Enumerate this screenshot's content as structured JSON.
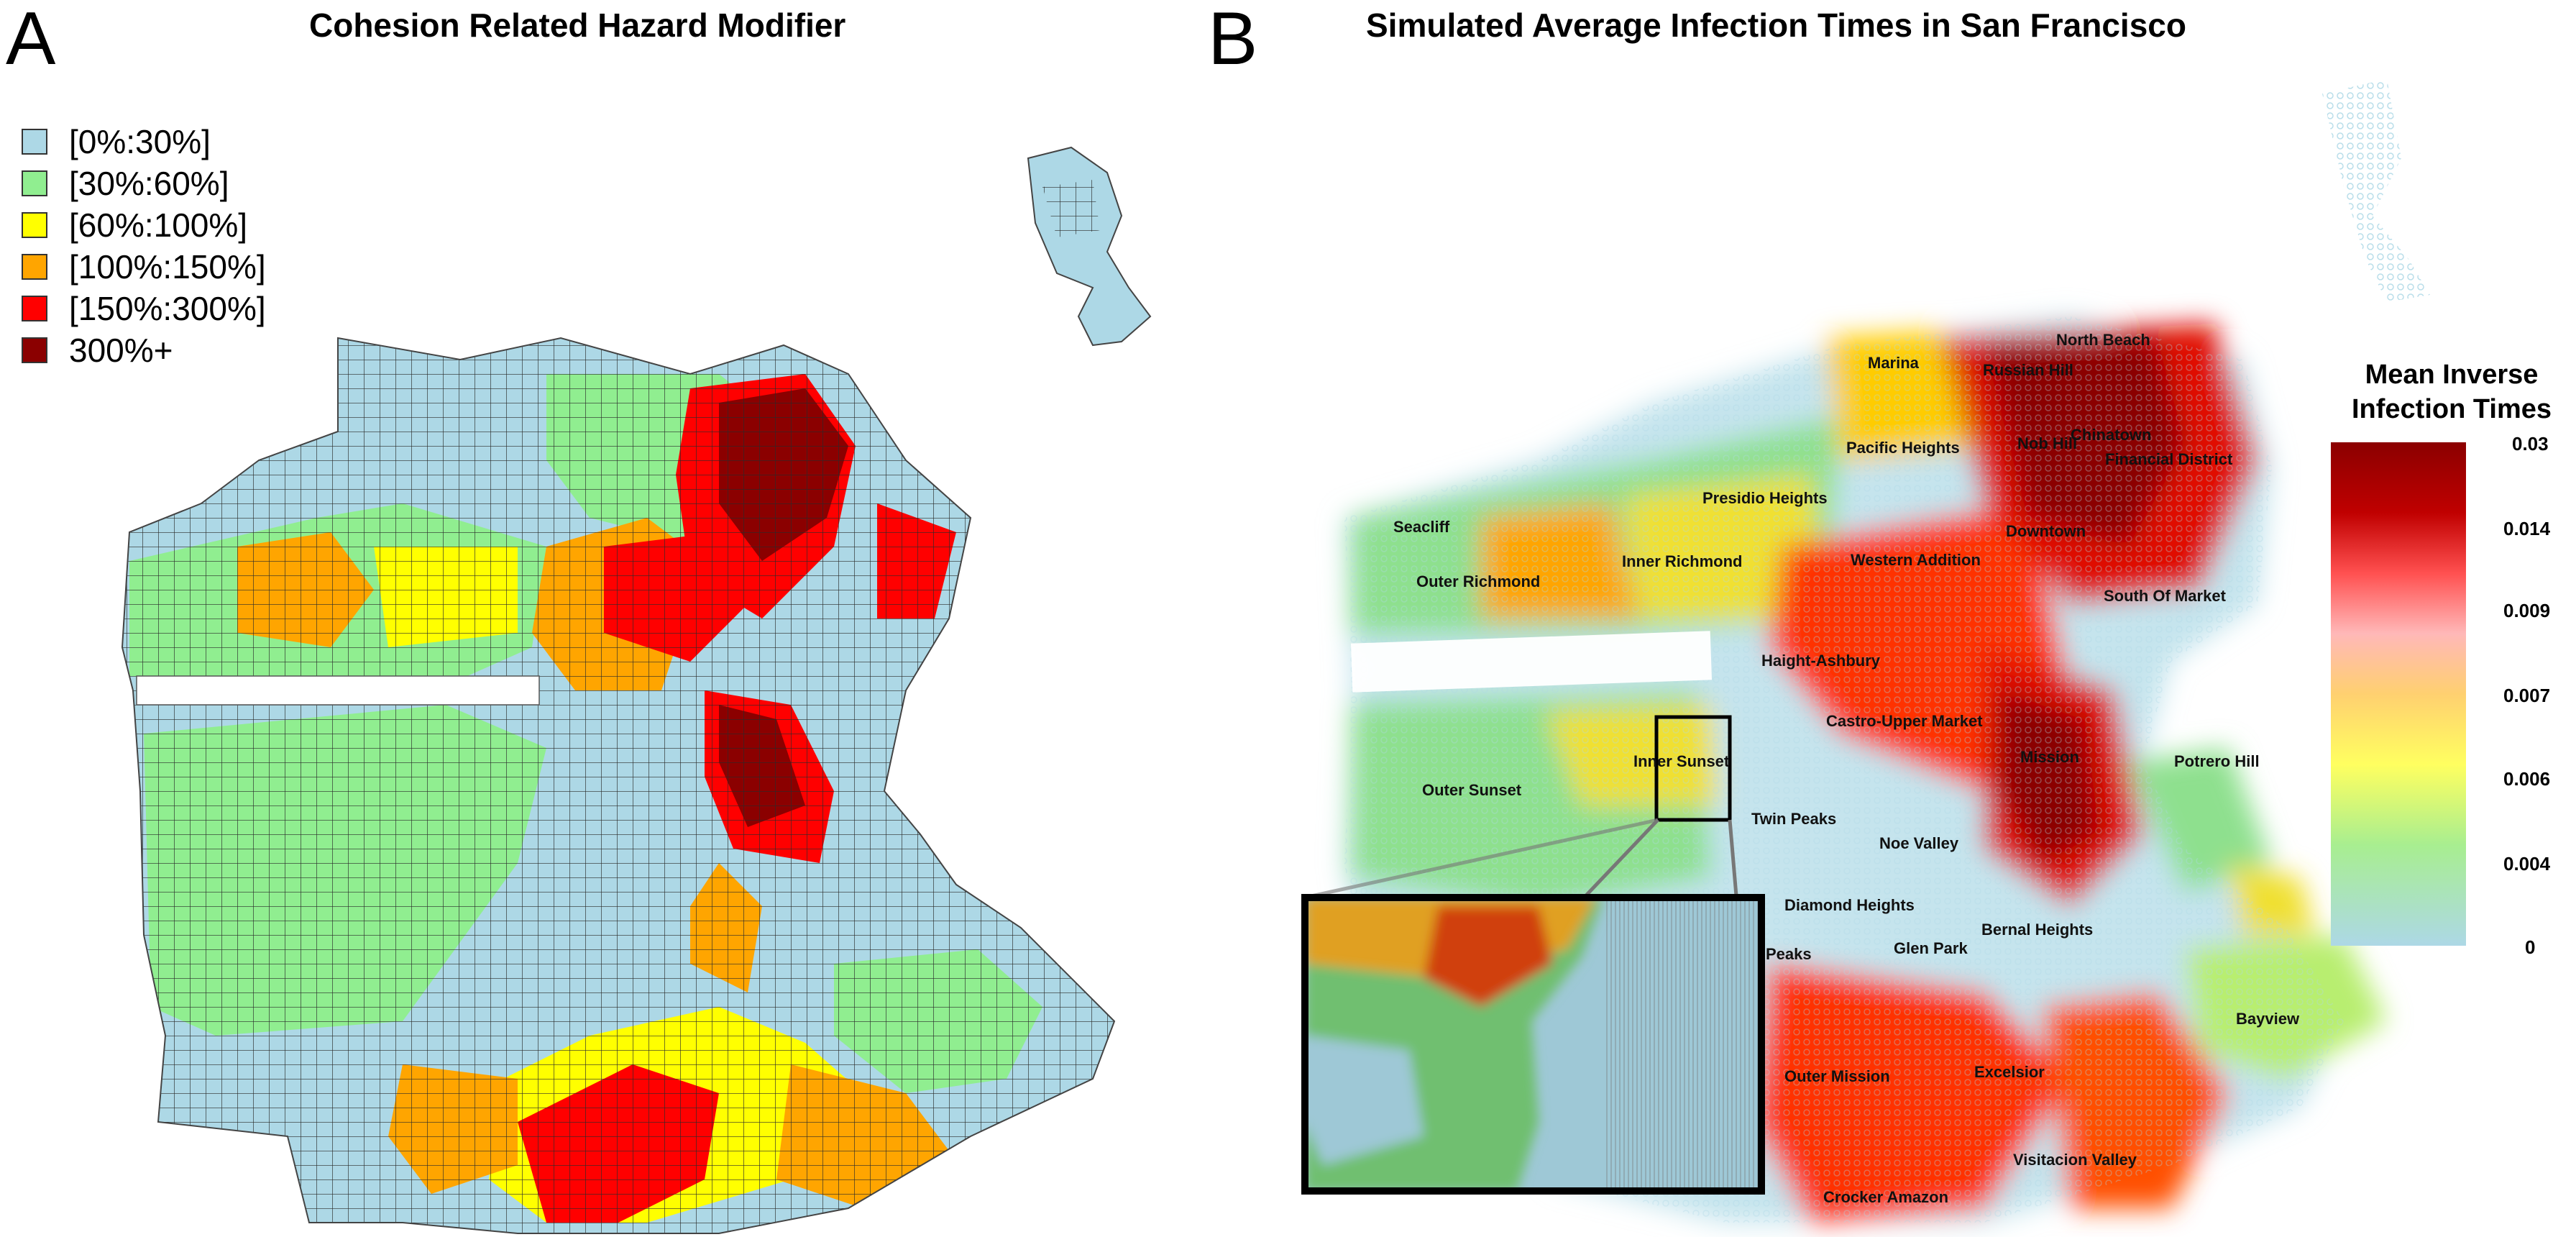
{
  "panel_a": {
    "letter": "A",
    "title": "Cohesion Related Hazard Modifier",
    "legend": [
      {
        "label": "[0%:30%]",
        "color": "#add8e6"
      },
      {
        "label": "[30%:60%]",
        "color": "#90ee90"
      },
      {
        "label": "[60%:100%]",
        "color": "#ffff00"
      },
      {
        "label": "[100%:150%]",
        "color": "#ffa500"
      },
      {
        "label": "[150%:300%]",
        "color": "#ff0000"
      },
      {
        "label": "300%+",
        "color": "#8b0000"
      }
    ]
  },
  "panel_b": {
    "letter": "B",
    "title": "Simulated Average Infection Times in San Francisco",
    "neighborhoods": [
      "North Beach",
      "Marina",
      "Russian Hill",
      "Chinatown",
      "Nob Hill",
      "Financial District",
      "Pacific Heights",
      "Presidio Heights",
      "Seacliff",
      "Downtown",
      "Outer Richmond",
      "Inner Richmond",
      "Western Addition",
      "South Of Market",
      "Haight-Ashbury",
      "Castro-Upper Market",
      "Inner Sunset",
      "Mission",
      "Potrero Hill",
      "Outer Sunset",
      "Twin Peaks",
      "Noe Valley",
      "Diamond Heights",
      "Bernal Heights",
      "Peaks",
      "Glen Park",
      "Bayview",
      "Outer Mission",
      "Excelsior",
      "Visitacion Valley",
      "Crocker Amazon"
    ],
    "colorbar": {
      "title_line1": "Mean Inverse",
      "title_line2": "Infection Times",
      "ticks": [
        "0.03",
        "0.014",
        "0.009",
        "0.007",
        "0.006",
        "0.004",
        "0"
      ],
      "colors": [
        "#8b0000",
        "#ff4040",
        "#ffa0a0",
        "#ffd050",
        "#ffff60",
        "#9be89b",
        "#add8e6"
      ]
    }
  }
}
